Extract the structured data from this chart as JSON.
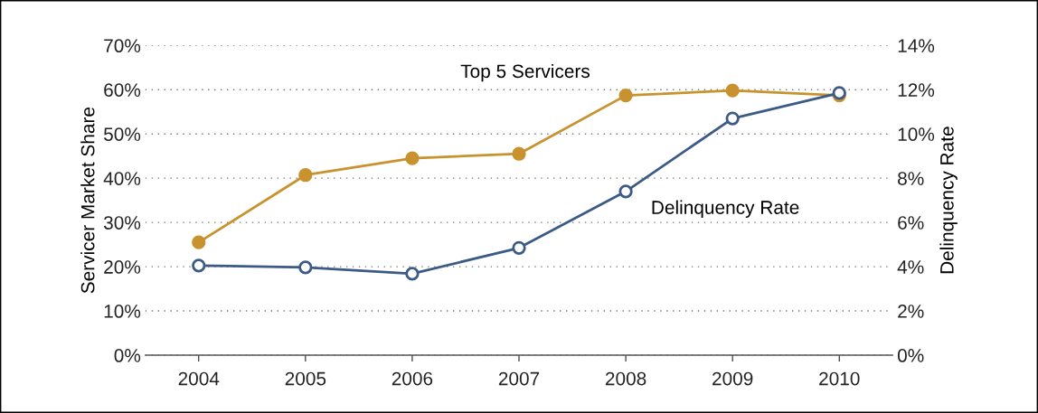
{
  "chart_data": {
    "type": "line",
    "ylabel": "Servicer Market Share",
    "y2label": "Delinquency Rate",
    "categories": [
      "2004",
      "2005",
      "2006",
      "2007",
      "2008",
      "2009",
      "2010"
    ],
    "series": [
      {
        "name": "Top 5 Servicers",
        "color": "#c8922e",
        "values": [
          25.5,
          40.7,
          44.5,
          45.5,
          58.7,
          59.8,
          58.7
        ]
      },
      {
        "name": "Delinquency Rate",
        "color": "#3b5a85",
        "axis": "y2",
        "values": [
          4.05,
          3.97,
          3.68,
          4.85,
          7.4,
          10.7,
          11.85
        ]
      }
    ],
    "ylim": [
      0,
      70
    ],
    "yticks": [
      {
        "value": 0,
        "label": "0%"
      },
      {
        "value": 10,
        "label": "10%"
      },
      {
        "value": 20,
        "label": "20%"
      },
      {
        "value": 30,
        "label": "30%"
      },
      {
        "value": 40,
        "label": "40%"
      },
      {
        "value": 50,
        "label": "50%"
      },
      {
        "value": 60,
        "label": "60%"
      },
      {
        "value": 70,
        "label": "70%"
      }
    ],
    "y2lim": [
      0,
      14
    ],
    "y2ticks": [
      {
        "value": 0,
        "label": "0%"
      },
      {
        "value": 2,
        "label": "2%"
      },
      {
        "value": 4,
        "label": "4%"
      },
      {
        "value": 6,
        "label": "6%"
      },
      {
        "value": 8,
        "label": "8%"
      },
      {
        "value": 10,
        "label": "10%"
      },
      {
        "value": 12,
        "label": "12%"
      },
      {
        "value": 14,
        "label": "14%"
      }
    ],
    "grid": "y",
    "marker": "circle",
    "line_style": "solid",
    "legend": false
  }
}
